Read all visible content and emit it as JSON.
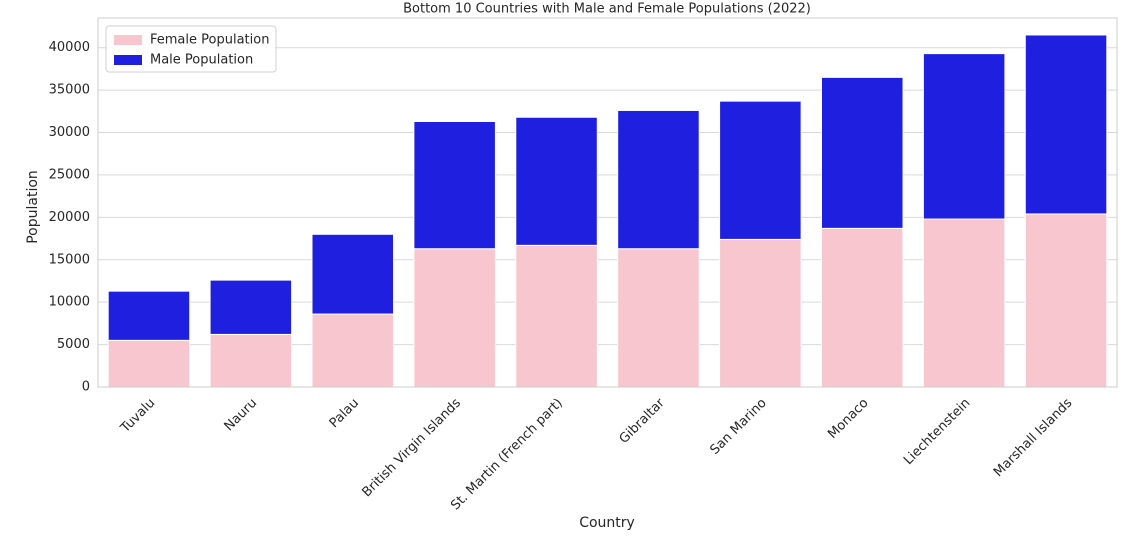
{
  "chart_data": {
    "type": "stacked-bar",
    "title": "Bottom 10 Countries with Male and Female Populations (2022)",
    "xlabel": "Country",
    "ylabel": "Population",
    "categories": [
      "Tuvalu",
      "Nauru",
      "Palau",
      "British Virgin Islands",
      "St. Martin (French part)",
      "Gibraltar",
      "San Marino",
      "Monaco",
      "Liechtenstein",
      "Marshall Islands"
    ],
    "series": [
      {
        "name": "Female Population",
        "color": "#f7c6cf",
        "values": [
          5500,
          6200,
          8600,
          16300,
          16700,
          16300,
          17400,
          18700,
          19800,
          20400
        ]
      },
      {
        "name": "Male Population",
        "color": "#1f1fe0",
        "values": [
          5800,
          6400,
          9400,
          15000,
          15100,
          16300,
          16300,
          17800,
          19500,
          21100
        ]
      }
    ],
    "ylim": [
      0,
      43500
    ],
    "yticks": [
      0,
      5000,
      10000,
      15000,
      20000,
      25000,
      30000,
      35000,
      40000
    ],
    "grid": true,
    "legend": "upper-left"
  }
}
